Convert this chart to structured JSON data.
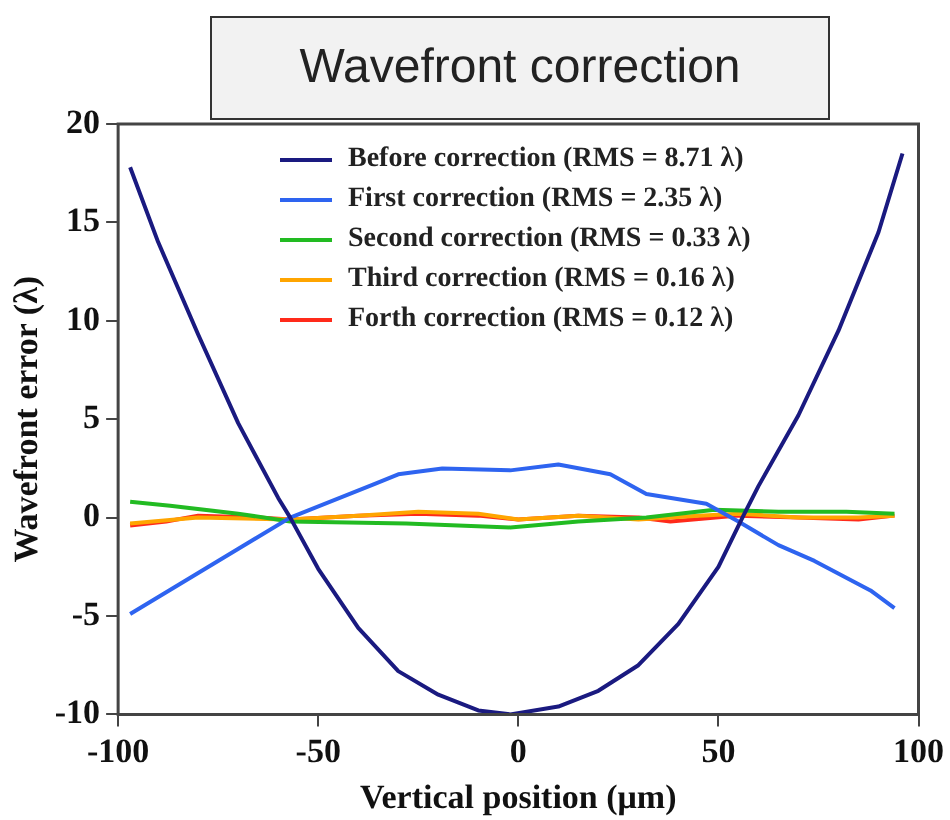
{
  "chart_data": {
    "type": "line",
    "title": "Wavefront correction",
    "xlabel": "Vertical position (μm)",
    "ylabel": "Wavefront error (λ)",
    "xlim": [
      -100,
      100
    ],
    "xticks": [
      -100,
      -50,
      0,
      50,
      100
    ],
    "ylim": [
      -10,
      20
    ],
    "yticks": [
      -10,
      -5,
      0,
      5,
      10,
      15,
      20
    ],
    "grid": false,
    "legend": "top",
    "marker": "none",
    "line_style": "solid",
    "series": [
      {
        "name": "Before correction (RMS = 8.71 λ)",
        "color": "#1a1a80",
        "x": [
          -97,
          -90,
          -80,
          -70,
          -60,
          -57,
          -50,
          -40,
          -30,
          -20,
          -10,
          -2,
          10,
          20,
          30,
          40,
          50,
          56,
          60,
          70,
          80,
          90,
          96
        ],
        "values": [
          17.8,
          14,
          9.3,
          4.8,
          1,
          0,
          -2.6,
          -5.6,
          -7.8,
          -9,
          -9.8,
          -10,
          -9.6,
          -8.8,
          -7.5,
          -5.4,
          -2.5,
          0,
          1.6,
          5.2,
          9.5,
          14.5,
          18.5
        ]
      },
      {
        "name": "First correction (RMS = 2.35 λ)",
        "color": "#2e64f0",
        "x": [
          -97,
          -57,
          -36,
          -30,
          -19,
          -2,
          10,
          23,
          32,
          47,
          55,
          65,
          74,
          88,
          94
        ],
        "values": [
          -4.9,
          0,
          1.7,
          2.2,
          2.5,
          2.4,
          2.7,
          2.2,
          1.2,
          0.7,
          -0.2,
          -1.4,
          -2.2,
          -3.7,
          -4.6
        ]
      },
      {
        "name": "Second correction (RMS = 0.33 λ)",
        "color": "#22bb22",
        "x": [
          -97,
          -87,
          -70,
          -57,
          -28,
          -2,
          15,
          32,
          49,
          65,
          82,
          94
        ],
        "values": [
          0.8,
          0.6,
          0.2,
          -0.2,
          -0.3,
          -0.5,
          -0.2,
          0,
          0.4,
          0.3,
          0.3,
          0.2
        ]
      },
      {
        "name": "Third correction (RMS = 0.16 λ)",
        "color": "#ffa500",
        "x": [
          -97,
          -80,
          -57,
          -40,
          -25,
          -10,
          0,
          15,
          30,
          45,
          55,
          70,
          85,
          94
        ],
        "values": [
          -0.3,
          0,
          -0.1,
          0.1,
          0.3,
          0.2,
          -0.1,
          0.1,
          -0.1,
          0.1,
          0.2,
          0,
          0,
          0.1
        ]
      },
      {
        "name": "Forth correction (RMS = 0.12 λ)",
        "color": "#ff2a1a",
        "x": [
          -97,
          -88,
          -80,
          -65,
          -57,
          -40,
          -25,
          -10,
          0,
          15,
          30,
          38,
          55,
          70,
          85,
          94
        ],
        "values": [
          -0.4,
          -0.2,
          0.1,
          0,
          -0.1,
          0.1,
          0.2,
          0.1,
          -0.1,
          0.1,
          0,
          -0.2,
          0.1,
          0,
          -0.1,
          0.1
        ]
      }
    ]
  }
}
